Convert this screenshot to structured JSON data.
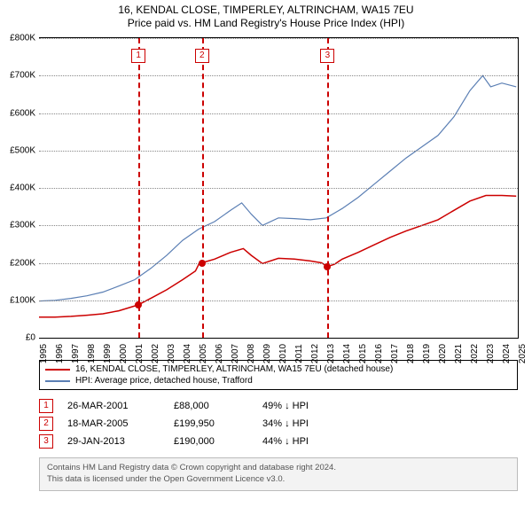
{
  "title_line1": "16, KENDAL CLOSE, TIMPERLEY, ALTRINCHAM, WA15 7EU",
  "title_line2": "Price paid vs. HM Land Registry's House Price Index (HPI)",
  "chart": {
    "type": "line",
    "background_color": "#ffffff",
    "grid_color": "#888888",
    "x_min_year": 1995,
    "x_max_year": 2025,
    "y_min": 0,
    "y_max": 800000,
    "y_ticks": [
      0,
      100000,
      200000,
      300000,
      400000,
      500000,
      600000,
      700000,
      800000
    ],
    "y_tick_labels": [
      "£0",
      "£100K",
      "£200K",
      "£300K",
      "£400K",
      "£500K",
      "£600K",
      "£700K",
      "£800K"
    ],
    "x_ticks": [
      1995,
      1996,
      1997,
      1998,
      1999,
      2000,
      2001,
      2002,
      2003,
      2004,
      2005,
      2006,
      2007,
      2008,
      2009,
      2010,
      2011,
      2012,
      2013,
      2014,
      2015,
      2016,
      2017,
      2018,
      2019,
      2020,
      2021,
      2022,
      2023,
      2024,
      2025
    ],
    "series": [
      {
        "key": "property",
        "label": "16, KENDAL CLOSE, TIMPERLEY, ALTRINCHAM, WA15 7EU (detached house)",
        "color": "#cc0000",
        "line_width": 1.5,
        "points": [
          [
            1995.0,
            55000
          ],
          [
            1996.0,
            55000
          ],
          [
            1997.0,
            57000
          ],
          [
            1998.0,
            60000
          ],
          [
            1999.0,
            64000
          ],
          [
            2000.0,
            72000
          ],
          [
            2001.0,
            85000
          ],
          [
            2001.23,
            88000
          ],
          [
            2002.0,
            105000
          ],
          [
            2003.0,
            128000
          ],
          [
            2004.0,
            155000
          ],
          [
            2004.8,
            178000
          ],
          [
            2005.0,
            195000
          ],
          [
            2005.21,
            199950
          ],
          [
            2006.0,
            210000
          ],
          [
            2007.0,
            228000
          ],
          [
            2007.8,
            238000
          ],
          [
            2008.3,
            220000
          ],
          [
            2009.0,
            198000
          ],
          [
            2010.0,
            212000
          ],
          [
            2011.0,
            210000
          ],
          [
            2012.0,
            205000
          ],
          [
            2012.7,
            200000
          ],
          [
            2013.08,
            190000
          ],
          [
            2013.5,
            196000
          ],
          [
            2014.0,
            210000
          ],
          [
            2015.0,
            228000
          ],
          [
            2016.0,
            248000
          ],
          [
            2017.0,
            268000
          ],
          [
            2018.0,
            285000
          ],
          [
            2019.0,
            300000
          ],
          [
            2020.0,
            315000
          ],
          [
            2021.0,
            340000
          ],
          [
            2022.0,
            365000
          ],
          [
            2023.0,
            380000
          ],
          [
            2024.0,
            380000
          ],
          [
            2024.9,
            378000
          ]
        ],
        "sale_markers": [
          {
            "year": 2001.23,
            "price": 88000
          },
          {
            "year": 2005.21,
            "price": 199950
          },
          {
            "year": 2013.08,
            "price": 190000
          }
        ]
      },
      {
        "key": "hpi",
        "label": "HPI: Average price, detached house, Trafford",
        "color": "#5b7fb4",
        "line_width": 1.2,
        "points": [
          [
            1995.0,
            98000
          ],
          [
            1996.0,
            100000
          ],
          [
            1997.0,
            105000
          ],
          [
            1998.0,
            112000
          ],
          [
            1999.0,
            122000
          ],
          [
            2000.0,
            138000
          ],
          [
            2001.0,
            155000
          ],
          [
            2002.0,
            185000
          ],
          [
            2003.0,
            220000
          ],
          [
            2004.0,
            260000
          ],
          [
            2005.0,
            290000
          ],
          [
            2006.0,
            310000
          ],
          [
            2007.0,
            340000
          ],
          [
            2007.7,
            360000
          ],
          [
            2008.3,
            330000
          ],
          [
            2009.0,
            300000
          ],
          [
            2010.0,
            320000
          ],
          [
            2011.0,
            318000
          ],
          [
            2012.0,
            315000
          ],
          [
            2013.0,
            320000
          ],
          [
            2014.0,
            345000
          ],
          [
            2015.0,
            375000
          ],
          [
            2016.0,
            410000
          ],
          [
            2017.0,
            445000
          ],
          [
            2018.0,
            480000
          ],
          [
            2019.0,
            510000
          ],
          [
            2020.0,
            540000
          ],
          [
            2021.0,
            590000
          ],
          [
            2022.0,
            660000
          ],
          [
            2022.8,
            700000
          ],
          [
            2023.3,
            670000
          ],
          [
            2024.0,
            680000
          ],
          [
            2024.9,
            670000
          ]
        ]
      }
    ],
    "event_lines": [
      {
        "num": "1",
        "year": 2001.23,
        "color": "#cc0000"
      },
      {
        "num": "2",
        "year": 2005.21,
        "color": "#cc0000"
      },
      {
        "num": "3",
        "year": 2013.08,
        "color": "#cc0000"
      }
    ],
    "marker_fill": "#cc0000"
  },
  "legend_items": [
    {
      "color": "#cc0000",
      "label": "16, KENDAL CLOSE, TIMPERLEY, ALTRINCHAM, WA15 7EU (detached house)"
    },
    {
      "color": "#5b7fb4",
      "label": "HPI: Average price, detached house, Trafford"
    }
  ],
  "sales": [
    {
      "num": "1",
      "date": "26-MAR-2001",
      "price": "£88,000",
      "delta": "49% ↓ HPI",
      "color": "#cc0000"
    },
    {
      "num": "2",
      "date": "18-MAR-2005",
      "price": "£199,950",
      "delta": "34% ↓ HPI",
      "color": "#cc0000"
    },
    {
      "num": "3",
      "date": "29-JAN-2013",
      "price": "£190,000",
      "delta": "44% ↓ HPI",
      "color": "#cc0000"
    }
  ],
  "footer_line1": "Contains HM Land Registry data © Crown copyright and database right 2024.",
  "footer_line2": "This data is licensed under the Open Government Licence v3.0."
}
